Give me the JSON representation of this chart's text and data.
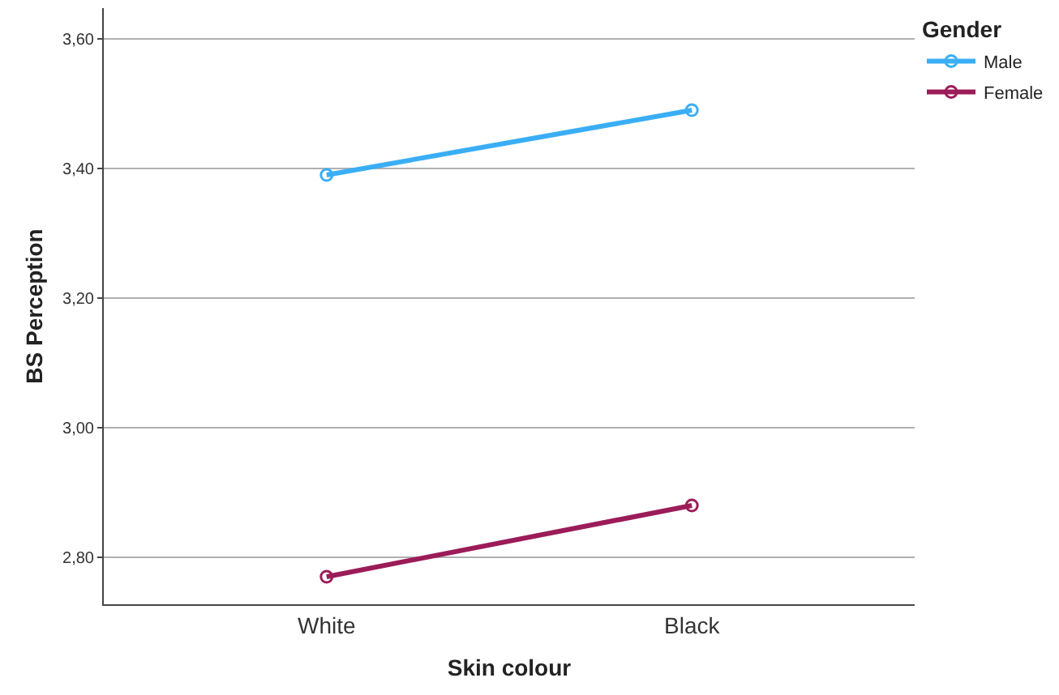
{
  "chart_data": {
    "type": "line",
    "xlabel": "Skin colour",
    "ylabel": "BS Perception",
    "legend_title": "Gender",
    "categories": [
      "White",
      "Black"
    ],
    "series": [
      {
        "name": "Male",
        "color": "#3aaef5",
        "values": [
          3.39,
          3.49
        ]
      },
      {
        "name": "Female",
        "color": "#9b1c59",
        "values": [
          2.77,
          2.88
        ]
      }
    ],
    "ylim": [
      2.7275,
      3.6475
    ],
    "yticks": [
      {
        "value": 2.8,
        "label": "2,80"
      },
      {
        "value": 3.0,
        "label": "3,00"
      },
      {
        "value": 3.2,
        "label": "3,20"
      },
      {
        "value": 3.4,
        "label": "3,40"
      },
      {
        "value": 3.6,
        "label": "3,60"
      }
    ],
    "grid": "y",
    "legend": "top right",
    "marker": "circle",
    "line_style": "solid"
  }
}
